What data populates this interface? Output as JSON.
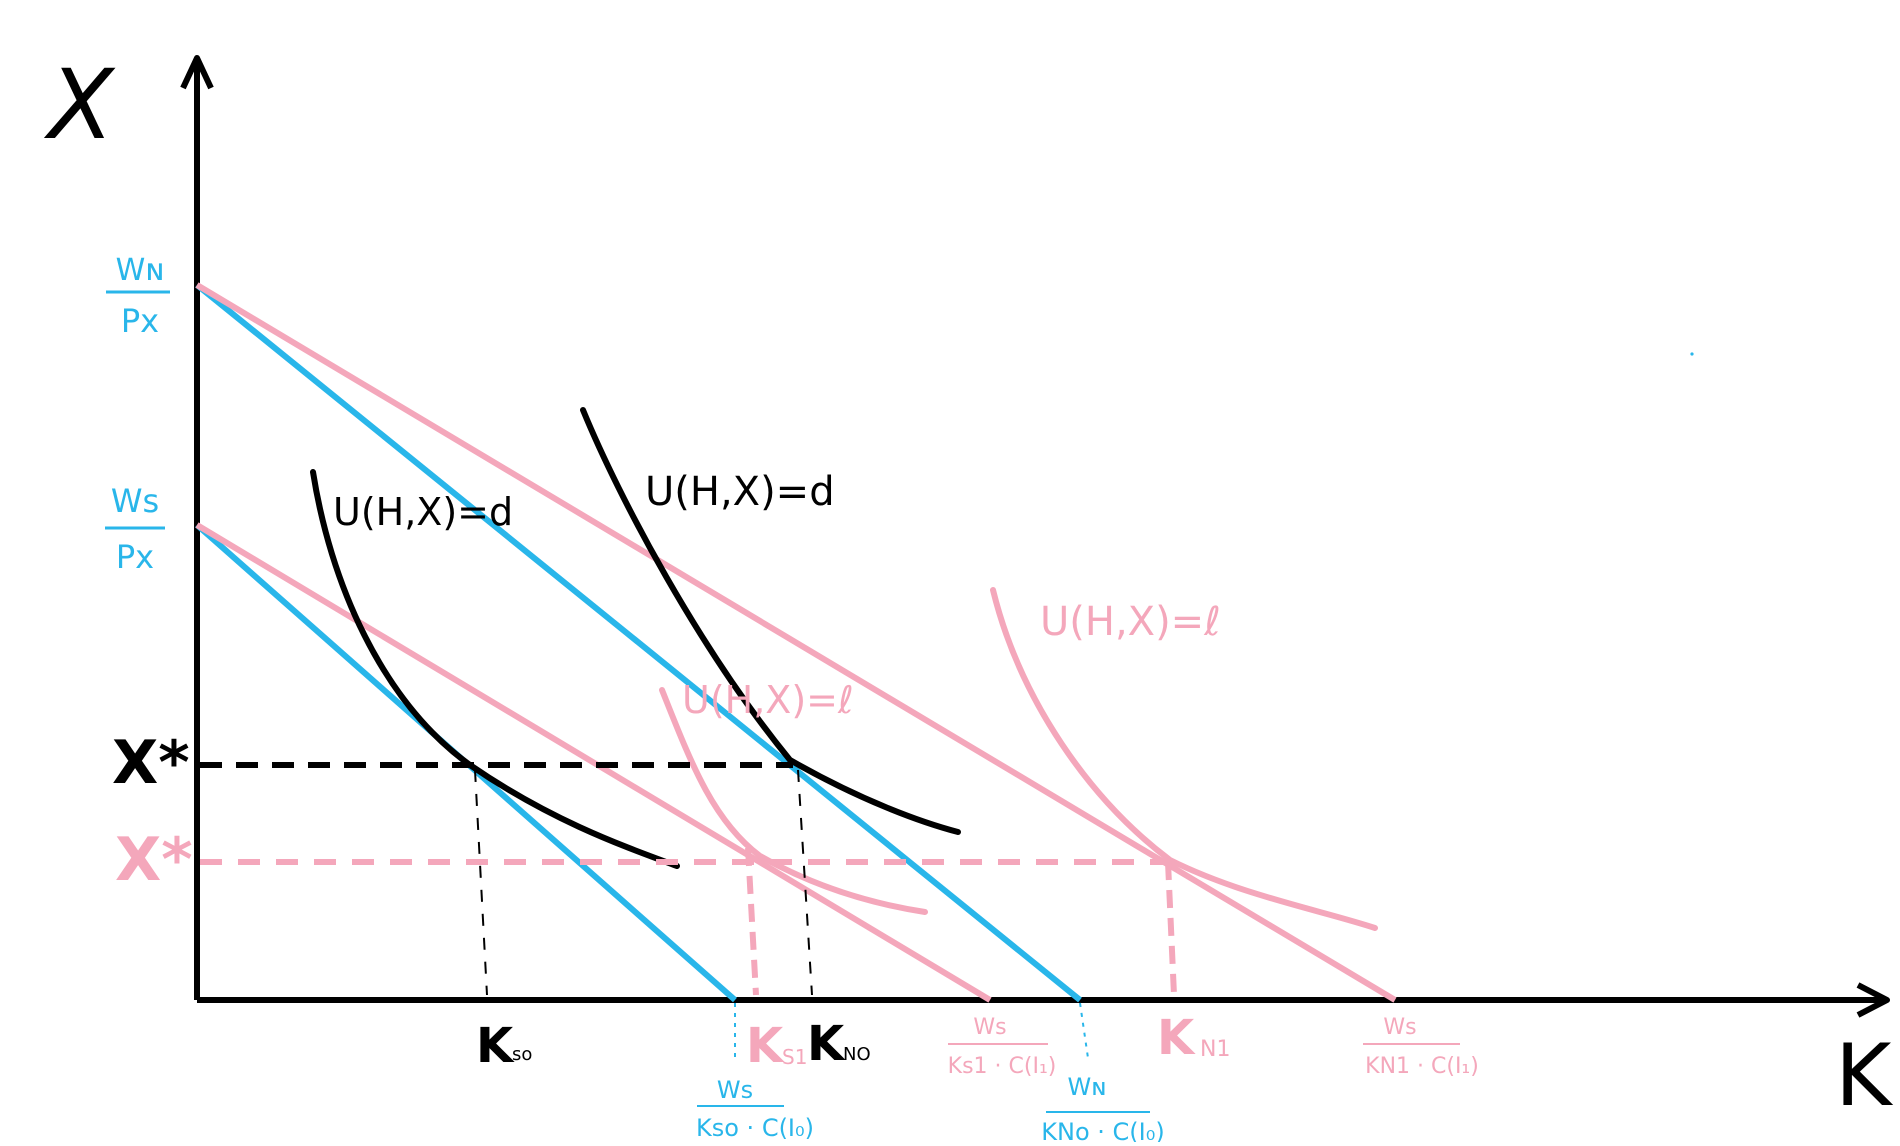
{
  "colors": {
    "ink": "#000000",
    "blue": "#29b6ea",
    "pink": "#f4a7bb",
    "background": "#ffffff"
  },
  "axes": {
    "y_label": "X",
    "x_label": "K"
  },
  "y_ticks": {
    "wn_num": "Wɴ",
    "wn_den": "Px",
    "ws_num": "Ws",
    "ws_den": "Px",
    "x_star_black": "X*",
    "x_star_pink": "X*"
  },
  "curve_labels": {
    "black_left": "U(H,X)=d",
    "black_right": "U(H,X)=d",
    "pink_mid": "U(H,X)=ℓ",
    "pink_right": "U(H,X)=ℓ"
  },
  "x_ticks": {
    "k_s0": {
      "main": "K",
      "sub": "so"
    },
    "k_s1": {
      "main": "K",
      "sub": "S1"
    },
    "k_n0": {
      "main": "K",
      "sub": "NO"
    },
    "k_n1": {
      "main": "K",
      "sub": "N1"
    },
    "frac_ks0": {
      "num": "Ws",
      "den": "Kso · C(I₀)"
    },
    "frac_ks1": {
      "num": "Ws",
      "den": "Ks1 · C(I₁)"
    },
    "frac_kn0": {
      "num": "Wɴ",
      "den": "KNo · C(I₀)"
    },
    "frac_kn1": {
      "num": "Ws",
      "den": "KN1 · C(I₁)"
    }
  }
}
